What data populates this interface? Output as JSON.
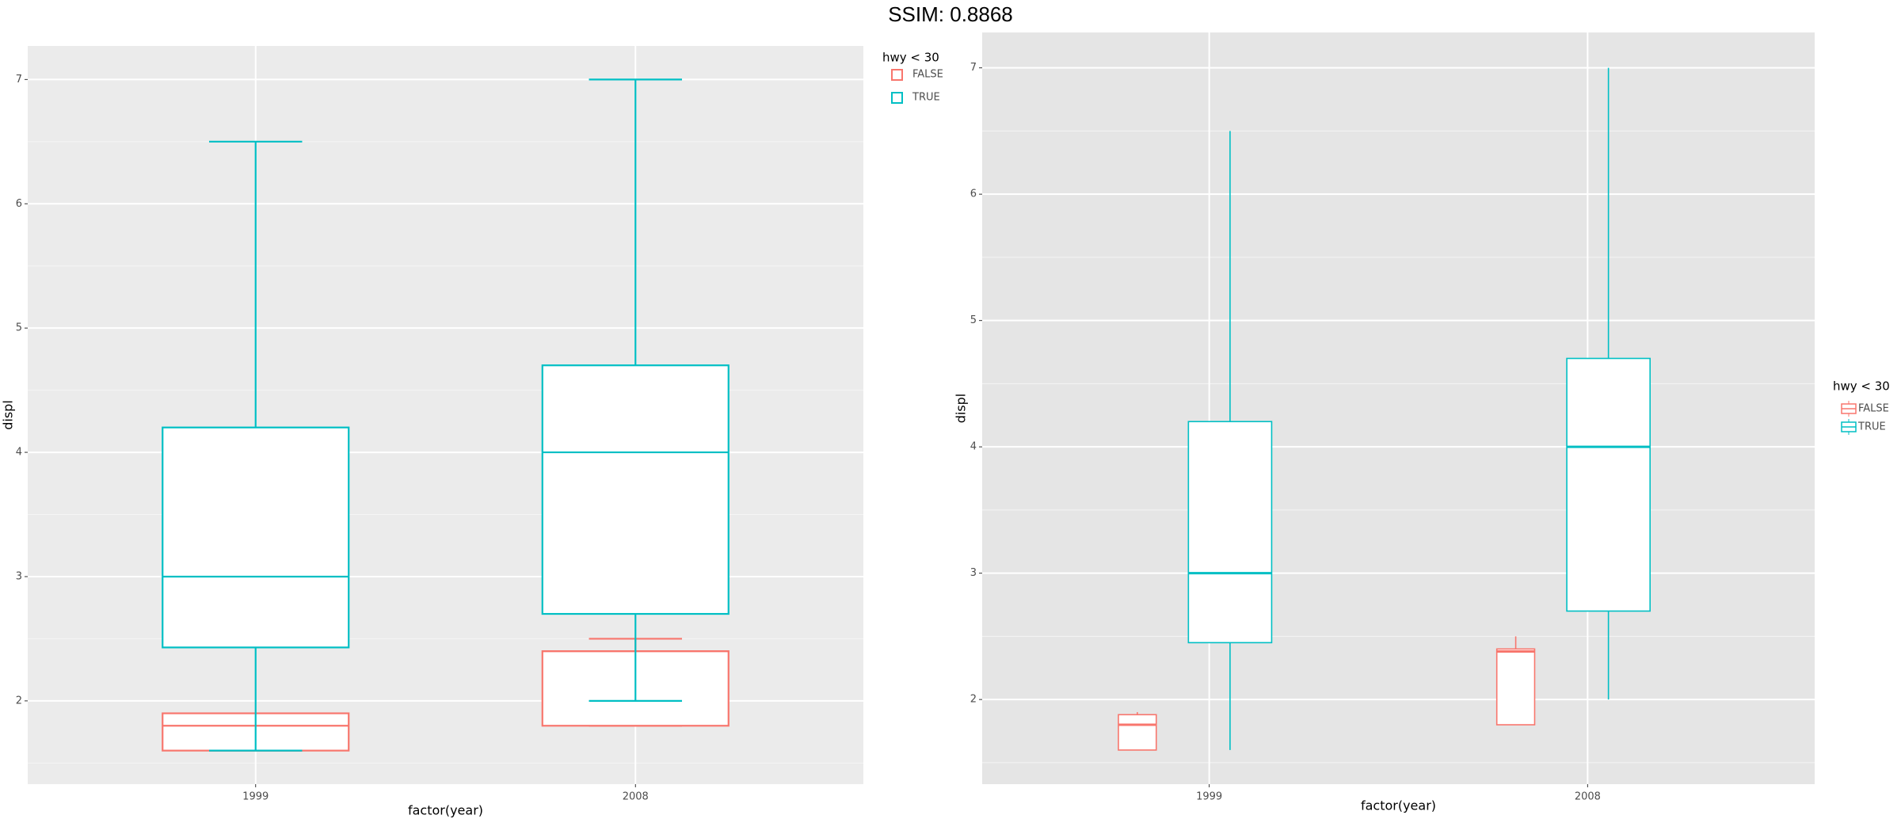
{
  "header": {
    "title": "SSIM: 0.8868"
  },
  "chart_data": [
    {
      "type": "boxplot",
      "x_label": "factor(year)",
      "y_label": "displ",
      "categories": [
        "1999",
        "2008"
      ],
      "legend_title": "hwy < 30",
      "legend": "top-right",
      "dodge": false,
      "caps": true,
      "grid": true,
      "ylim": [
        1.33,
        7.27
      ],
      "yticks": [
        2,
        3,
        4,
        5,
        6,
        7
      ],
      "series": [
        {
          "name": "FALSE",
          "color": "#F8766D",
          "low": [
            1.6,
            1.8
          ],
          "q1": [
            1.6,
            1.8
          ],
          "median": [
            1.8,
            2.4
          ],
          "q3": [
            1.9,
            2.4
          ],
          "high": [
            1.9,
            2.5
          ]
        },
        {
          "name": "TRUE",
          "color": "#00BFC4",
          "low": [
            1.6,
            2.0
          ],
          "q1": [
            2.43,
            2.7
          ],
          "median": [
            3.0,
            4.0
          ],
          "q3": [
            4.2,
            4.7
          ],
          "high": [
            6.5,
            7.0
          ]
        }
      ]
    },
    {
      "type": "boxplot",
      "x_label": "factor(year)",
      "y_label": "displ",
      "categories": [
        "1999",
        "2008"
      ],
      "legend_title": "hwy < 30",
      "legend": "right",
      "dodge": true,
      "caps": false,
      "grid": true,
      "ylim": [
        1.33,
        7.28
      ],
      "yticks": [
        2,
        3,
        4,
        5,
        6,
        7
      ],
      "series": [
        {
          "name": "FALSE",
          "color": "#F8766D",
          "low": [
            1.6,
            1.8
          ],
          "q1": [
            1.6,
            1.8
          ],
          "median": [
            1.8,
            2.38
          ],
          "q3": [
            1.88,
            2.4
          ],
          "high": [
            1.9,
            2.5
          ]
        },
        {
          "name": "TRUE",
          "color": "#00BFC4",
          "low": [
            1.6,
            2.0
          ],
          "q1": [
            2.45,
            2.7
          ],
          "median": [
            3.0,
            4.0
          ],
          "q3": [
            4.2,
            4.7
          ],
          "high": [
            6.5,
            7.0
          ]
        }
      ]
    }
  ]
}
